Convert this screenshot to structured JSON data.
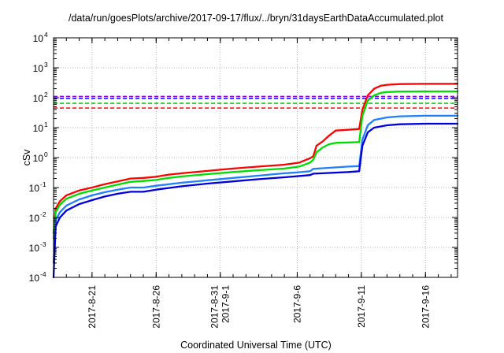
{
  "chart_data": {
    "type": "line",
    "title": "/data/run/goesPlots/archive/2017-09-17/flux/../bryn/31daysEarthDataAccumulated.plot",
    "xlabel": "Coordinated Universal Time (UTC)",
    "ylabel": "cSv",
    "yscale": "log",
    "ylim": [
      0.0001,
      10000
    ],
    "xlim": [
      "2017-08-18T00:00",
      "2017-09-18T12:00"
    ],
    "grid": true,
    "legend": "none",
    "y_ticks": [
      {
        "base": "10",
        "exp": "-4"
      },
      {
        "base": "10",
        "exp": "-3"
      },
      {
        "base": "10",
        "exp": "-2"
      },
      {
        "base": "10",
        "exp": "-1"
      },
      {
        "base": "10",
        "exp": "0"
      },
      {
        "base": "10",
        "exp": "1"
      },
      {
        "base": "10",
        "exp": "2"
      },
      {
        "base": "10",
        "exp": "3"
      },
      {
        "base": "10",
        "exp": "4"
      }
    ],
    "x_ticks": [
      {
        "date": "2017-08-21",
        "lines": [
          "2017-8-21"
        ]
      },
      {
        "date": "2017-08-26",
        "lines": [
          "2017-8-26"
        ]
      },
      {
        "date": "2017-08-31",
        "lines": [
          "2017-8-31",
          "2017-9-1"
        ]
      },
      {
        "date": "2017-09-06",
        "lines": [
          "2017-9-6"
        ]
      },
      {
        "date": "2017-09-11",
        "lines": [
          "2017-9-11"
        ]
      },
      {
        "date": "2017-09-16",
        "lines": [
          "2017-9-16"
        ]
      }
    ],
    "thresholds": [
      {
        "color": "#9400d3",
        "y": 110
      },
      {
        "color": "#0000ff",
        "y": 95
      },
      {
        "color": "#00c800",
        "y": 65
      },
      {
        "color": "#ff0000",
        "y": 45
      }
    ],
    "series": [
      {
        "color": "#ff0000",
        "x": [
          "2017-08-18T00:00",
          "2017-08-18T04:00",
          "2017-08-18T12:00",
          "2017-08-19T00:00",
          "2017-08-20T00:00",
          "2017-08-21T00:00",
          "2017-08-22T00:00",
          "2017-08-23T00:00",
          "2017-08-24T00:00",
          "2017-08-25T00:00",
          "2017-08-26T00:00",
          "2017-08-27T00:00",
          "2017-08-28T00:00",
          "2017-08-30T00:00",
          "2017-09-01T00:00",
          "2017-09-03T00:00",
          "2017-09-05T00:00",
          "2017-09-05T12:00",
          "2017-09-06T04:00",
          "2017-09-06T12:00",
          "2017-09-07T00:00",
          "2017-09-07T06:00",
          "2017-09-07T12:00",
          "2017-09-08T00:00",
          "2017-09-08T12:00",
          "2017-09-09T00:00",
          "2017-09-10T00:00",
          "2017-09-10T20:00",
          "2017-09-11T02:00",
          "2017-09-11T12:00",
          "2017-09-12T00:00",
          "2017-09-12T12:00",
          "2017-09-13T00:00",
          "2017-09-14T00:00",
          "2017-09-16T00:00",
          "2017-09-18T12:00"
        ],
        "y": [
          0.003,
          0.02,
          0.035,
          0.055,
          0.08,
          0.1,
          0.13,
          0.16,
          0.2,
          0.21,
          0.23,
          0.27,
          0.3,
          0.36,
          0.43,
          0.5,
          0.58,
          0.62,
          0.68,
          0.78,
          0.95,
          1.1,
          2.5,
          3.5,
          5.5,
          8,
          8.5,
          9,
          40,
          120,
          200,
          250,
          270,
          285,
          290,
          290
        ]
      },
      {
        "color": "#00dd00",
        "x": [
          "2017-08-18T00:00",
          "2017-08-18T04:00",
          "2017-08-18T12:00",
          "2017-08-19T00:00",
          "2017-08-20T00:00",
          "2017-08-21T00:00",
          "2017-08-22T00:00",
          "2017-08-23T00:00",
          "2017-08-24T00:00",
          "2017-08-25T00:00",
          "2017-08-26T00:00",
          "2017-08-27T00:00",
          "2017-08-28T00:00",
          "2017-08-30T00:00",
          "2017-09-01T00:00",
          "2017-09-03T00:00",
          "2017-09-05T00:00",
          "2017-09-05T12:00",
          "2017-09-06T04:00",
          "2017-09-06T12:00",
          "2017-09-07T00:00",
          "2017-09-07T06:00",
          "2017-09-07T12:00",
          "2017-09-08T00:00",
          "2017-09-08T12:00",
          "2017-09-09T00:00",
          "2017-09-10T00:00",
          "2017-09-10T20:00",
          "2017-09-11T02:00",
          "2017-09-11T12:00",
          "2017-09-12T00:00",
          "2017-09-12T12:00",
          "2017-09-13T00:00",
          "2017-09-14T00:00",
          "2017-09-16T00:00",
          "2017-09-18T12:00"
        ],
        "y": [
          0.002,
          0.015,
          0.027,
          0.042,
          0.062,
          0.08,
          0.1,
          0.125,
          0.155,
          0.165,
          0.18,
          0.21,
          0.235,
          0.28,
          0.33,
          0.38,
          0.43,
          0.46,
          0.5,
          0.57,
          0.68,
          0.85,
          1.5,
          2.2,
          2.8,
          3.1,
          3.2,
          3.3,
          25,
          80,
          120,
          145,
          155,
          160,
          162,
          162
        ]
      },
      {
        "color": "#1e7fff",
        "x": [
          "2017-08-18T00:00",
          "2017-08-18T04:00",
          "2017-08-18T12:00",
          "2017-08-19T00:00",
          "2017-08-20T00:00",
          "2017-08-21T00:00",
          "2017-08-22T00:00",
          "2017-08-23T00:00",
          "2017-08-24T00:00",
          "2017-08-25T00:00",
          "2017-08-26T00:00",
          "2017-08-28T00:00",
          "2017-08-30T00:00",
          "2017-09-01T00:00",
          "2017-09-03T00:00",
          "2017-09-05T00:00",
          "2017-09-06T00:00",
          "2017-09-07T00:00",
          "2017-09-07T06:00",
          "2017-09-08T00:00",
          "2017-09-10T00:00",
          "2017-09-10T20:00",
          "2017-09-11T02:00",
          "2017-09-11T12:00",
          "2017-09-12T00:00",
          "2017-09-13T00:00",
          "2017-09-14T00:00",
          "2017-09-16T00:00",
          "2017-09-18T12:00"
        ],
        "y": [
          0.0003,
          0.008,
          0.015,
          0.025,
          0.04,
          0.055,
          0.07,
          0.085,
          0.1,
          0.1,
          0.115,
          0.145,
          0.175,
          0.21,
          0.25,
          0.3,
          0.32,
          0.35,
          0.42,
          0.44,
          0.5,
          0.52,
          4,
          12,
          18,
          22,
          24,
          25,
          25
        ]
      },
      {
        "color": "#0000dd",
        "x": [
          "2017-08-18T00:00",
          "2017-08-18T04:00",
          "2017-08-18T12:00",
          "2017-08-19T00:00",
          "2017-08-20T00:00",
          "2017-08-21T00:00",
          "2017-08-22T00:00",
          "2017-08-23T00:00",
          "2017-08-24T00:00",
          "2017-08-25T00:00",
          "2017-08-26T00:00",
          "2017-08-28T00:00",
          "2017-08-30T00:00",
          "2017-09-01T00:00",
          "2017-09-03T00:00",
          "2017-09-05T00:00",
          "2017-09-06T00:00",
          "2017-09-07T00:00",
          "2017-09-07T06:00",
          "2017-09-08T00:00",
          "2017-09-10T00:00",
          "2017-09-10T20:00",
          "2017-09-11T02:00",
          "2017-09-11T12:00",
          "2017-09-12T00:00",
          "2017-09-13T00:00",
          "2017-09-14T00:00",
          "2017-09-16T00:00",
          "2017-09-18T12:00"
        ],
        "y": [
          0.0001,
          0.005,
          0.01,
          0.017,
          0.028,
          0.038,
          0.05,
          0.062,
          0.072,
          0.072,
          0.085,
          0.11,
          0.135,
          0.16,
          0.19,
          0.22,
          0.24,
          0.26,
          0.29,
          0.3,
          0.33,
          0.35,
          2.5,
          7,
          10,
          12,
          13,
          13.5,
          13.5
        ]
      }
    ]
  }
}
